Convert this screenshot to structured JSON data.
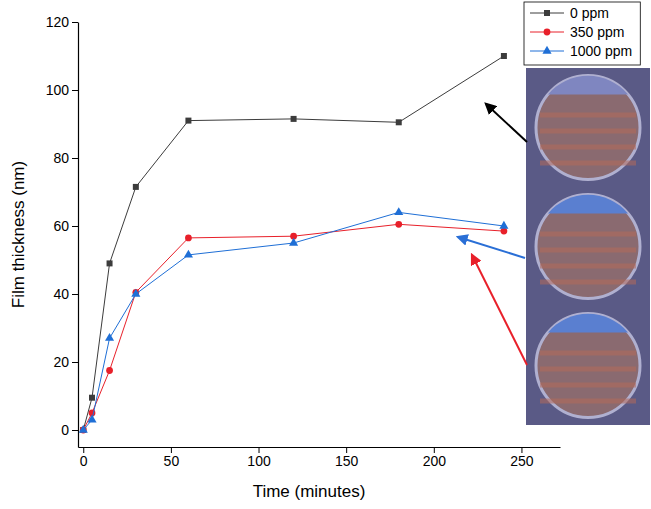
{
  "chart_data": {
    "type": "line",
    "x_label": "Time (minutes)",
    "y_label": "Film thickness (nm)",
    "x": [
      0,
      5,
      15,
      30,
      60,
      120,
      180,
      240
    ],
    "series": [
      {
        "name": "0 ppm",
        "color": "#3c3c3c",
        "marker": "square",
        "values": [
          0,
          9.5,
          49,
          71.5,
          91,
          91.5,
          90.5,
          110
        ]
      },
      {
        "name": "350 ppm",
        "color": "#e8202a",
        "marker": "circle",
        "values": [
          0,
          5,
          17.5,
          40.5,
          56.5,
          57,
          60.5,
          58.5
        ]
      },
      {
        "name": "1000 ppm",
        "color": "#1f6fd6",
        "marker": "triangle",
        "values": [
          0,
          3,
          27,
          40,
          51.5,
          55,
          64,
          60
        ]
      }
    ],
    "xlim": [
      -3,
      272
    ],
    "xticks": [
      0,
      50,
      100,
      150,
      200,
      250
    ],
    "ylim": [
      -5,
      120
    ],
    "yticks": [
      0,
      20,
      40,
      60,
      80,
      100,
      120
    ],
    "grid": false,
    "legend": "top-right"
  }
}
